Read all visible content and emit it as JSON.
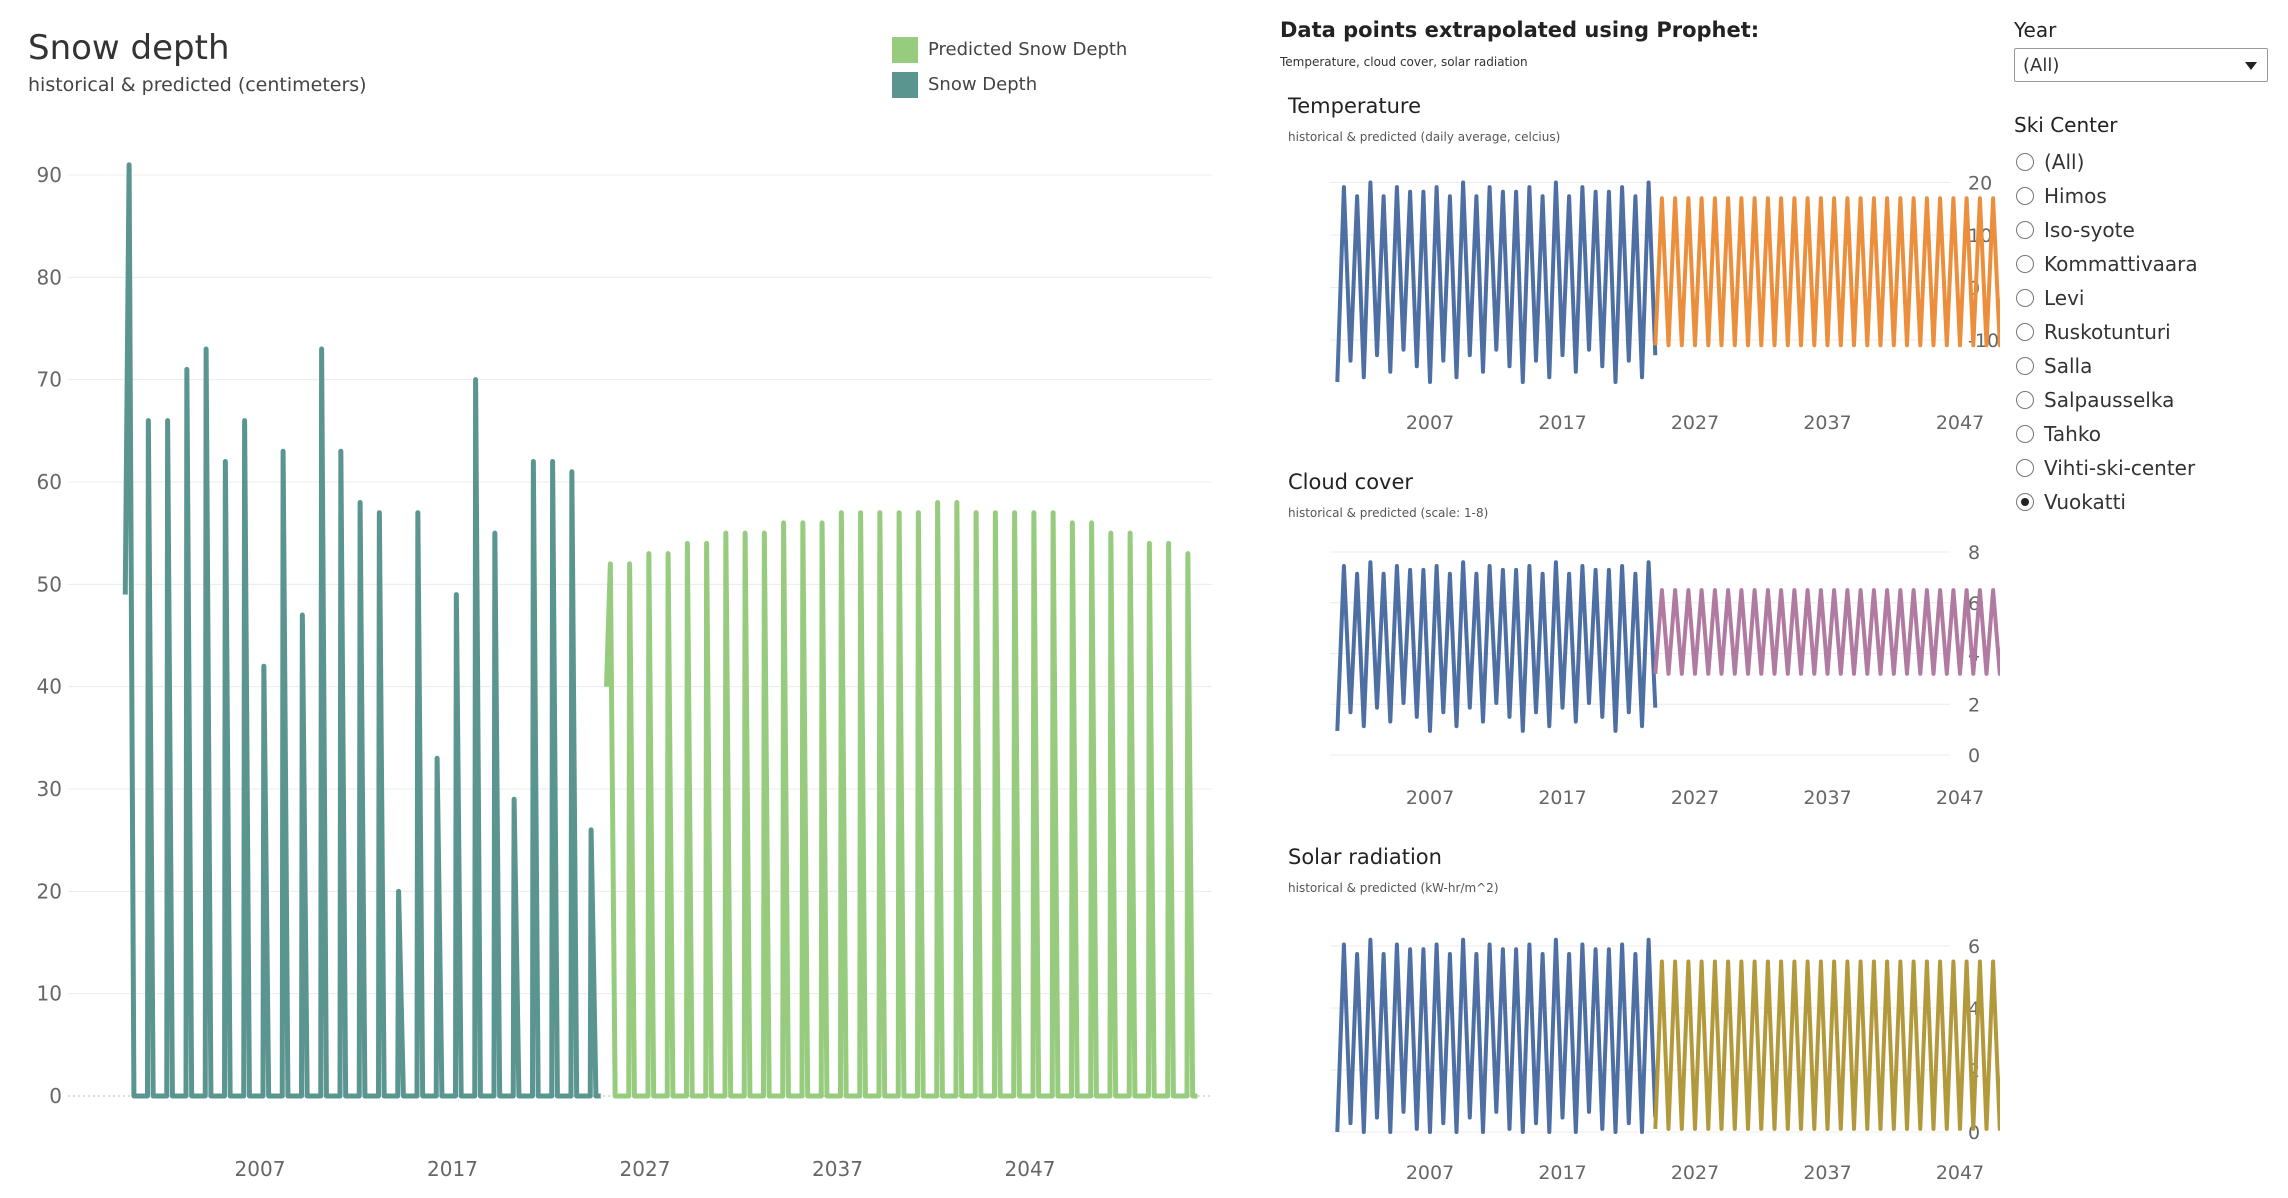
{
  "snow": {
    "title": "Snow depth",
    "subtitle": "historical & predicted (centimeters)",
    "legend": [
      {
        "label": "Predicted Snow Depth",
        "color": "#97cc7f"
      },
      {
        "label": "Snow Depth",
        "color": "#5a9590"
      }
    ]
  },
  "right_panel": {
    "heading": "Data points extrapolated using Prophet:",
    "subheading": "Temperature, cloud cover, solar radiation"
  },
  "small_charts": {
    "temperature": {
      "title": "Temperature",
      "subtitle": "historical & predicted (daily average, celcius)"
    },
    "cloud": {
      "title": "Cloud cover",
      "subtitle": "historical & predicted (scale: 1-8)"
    },
    "solar": {
      "title": "Solar radiation",
      "subtitle": "historical & predicted (kW-hr/m^2)"
    }
  },
  "filters": {
    "year_label": "Year",
    "year_value": "(All)",
    "ski_label": "Ski Center",
    "ski_options": [
      "(All)",
      "Himos",
      "Iso-syote",
      "Kommattivaara",
      "Levi",
      "Ruskotunturi",
      "Salla",
      "Salpausselka",
      "Tahko",
      "Vihti-ski-center",
      "Vuokatti"
    ],
    "ski_selected": "Vuokatti"
  },
  "chart_data": [
    {
      "type": "line",
      "title": "Snow depth",
      "subtitle": "historical & predicted (centimeters)",
      "x_ticks": [
        "2007",
        "2017",
        "2027",
        "2037",
        "2047"
      ],
      "y_ticks": [
        0,
        10,
        20,
        30,
        40,
        50,
        60,
        70,
        80,
        90
      ],
      "ylim": [
        0,
        90
      ],
      "grid": true,
      "legend_position": "top-right",
      "series": [
        {
          "name": "Snow Depth",
          "color": "#5a9590",
          "season_start_year": 2000,
          "seasonal_peaks": [
            91,
            66,
            66,
            71,
            73,
            62,
            66,
            42,
            63,
            47,
            73,
            63,
            58,
            57,
            20,
            57,
            33,
            49,
            70,
            55,
            29,
            62,
            62,
            61,
            26
          ]
        },
        {
          "name": "Predicted Snow Depth",
          "color": "#97cc7f",
          "season_start_year": 2025,
          "seasonal_peaks": [
            52,
            52,
            53,
            53,
            54,
            54,
            55,
            55,
            55,
            56,
            56,
            56,
            57,
            57,
            57,
            57,
            57,
            58,
            58,
            57,
            57,
            57,
            57,
            57,
            56,
            56,
            55,
            55,
            54,
            54,
            53
          ]
        }
      ]
    },
    {
      "type": "line",
      "title": "Temperature",
      "subtitle": "historical & predicted (daily average, celcius)",
      "x_ticks": [
        "2007",
        "2017",
        "2027",
        "2037",
        "2047"
      ],
      "y_ticks": [
        -10,
        0,
        10,
        20
      ],
      "ylim": [
        -18,
        22
      ],
      "grid": true,
      "series": [
        {
          "color": "#4e6fa3",
          "start_year": 2000,
          "end_year": 2024,
          "max": 20,
          "min": -15
        },
        {
          "color": "#ec8f3c",
          "start_year": 2024,
          "end_year": 2055,
          "max": 17,
          "min": -11
        }
      ]
    },
    {
      "type": "line",
      "title": "Cloud cover",
      "subtitle": "historical & predicted (scale: 1-8)",
      "x_ticks": [
        "2007",
        "2017",
        "2027",
        "2037",
        "2047"
      ],
      "y_ticks": [
        0,
        2,
        4,
        6,
        8
      ],
      "ylim": [
        0,
        8
      ],
      "grid": true,
      "series": [
        {
          "color": "#4e6fa3",
          "start_year": 2000,
          "end_year": 2024,
          "max": 7.6,
          "min": 1.5
        },
        {
          "color": "#b07aa1",
          "start_year": 2024,
          "end_year": 2055,
          "max": 6.5,
          "min": 3.2
        }
      ]
    },
    {
      "type": "line",
      "title": "Solar radiation",
      "subtitle": "historical & predicted (kW-hr/m^2)",
      "x_ticks": [
        "2007",
        "2017",
        "2027",
        "2037",
        "2047"
      ],
      "y_ticks": [
        0,
        2,
        4,
        6
      ],
      "ylim": [
        0,
        7
      ],
      "grid": true,
      "series": [
        {
          "color": "#4e6fa3",
          "start_year": 2000,
          "end_year": 2024,
          "max": 6.2,
          "min": 0.1
        },
        {
          "color": "#b29a3c",
          "start_year": 2024,
          "end_year": 2055,
          "max": 5.5,
          "min": 0.1
        }
      ]
    }
  ]
}
